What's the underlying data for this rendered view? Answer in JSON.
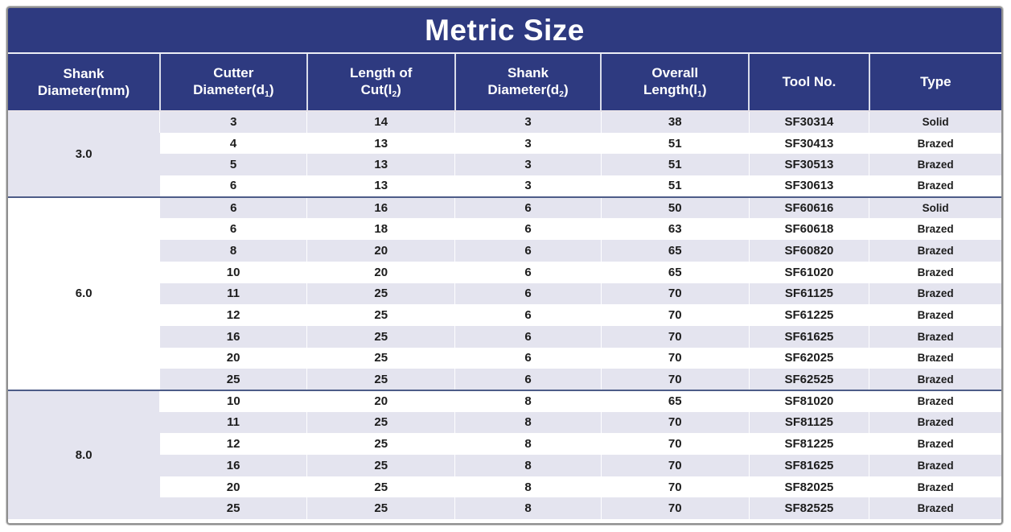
{
  "title": "Metric Size",
  "theme": {
    "header_navy": "#2e3a80",
    "row_stripe": "#e4e4ef",
    "group_separator": "#4d5c88",
    "outer_border": "#8f8f8f",
    "body_text": "#1c1c1c"
  },
  "table": {
    "columns": [
      {
        "id": "shank_mm",
        "line1": "Shank",
        "line2": "Diameter(mm)"
      },
      {
        "id": "cutter_d1",
        "line1": "Cutter",
        "line2_pre": "Diameter(d",
        "line2_sub": "1",
        "line2_post": ")"
      },
      {
        "id": "len_cut",
        "line1": "Length of",
        "line2_pre": "Cut(l",
        "line2_sub": "2",
        "line2_post": ")"
      },
      {
        "id": "shank_d2",
        "line1": "Shank",
        "line2_pre": "Diameter(d",
        "line2_sub": "2",
        "line2_post": ")"
      },
      {
        "id": "overall",
        "line1": "Overall",
        "line2_pre": "Length(l",
        "line2_sub": "1",
        "line2_post": ")"
      },
      {
        "id": "tool_no",
        "line1": "Tool No."
      },
      {
        "id": "type",
        "line1": "Type"
      }
    ],
    "groups": [
      {
        "shank_mm": "3.0",
        "rows": [
          {
            "d1": "3",
            "l2": "14",
            "d2": "3",
            "l1": "38",
            "tool": "SF30314",
            "type": "Solid"
          },
          {
            "d1": "4",
            "l2": "13",
            "d2": "3",
            "l1": "51",
            "tool": "SF30413",
            "type": "Brazed"
          },
          {
            "d1": "5",
            "l2": "13",
            "d2": "3",
            "l1": "51",
            "tool": "SF30513",
            "type": "Brazed"
          },
          {
            "d1": "6",
            "l2": "13",
            "d2": "3",
            "l1": "51",
            "tool": "SF30613",
            "type": "Brazed"
          }
        ]
      },
      {
        "shank_mm": "6.0",
        "rows": [
          {
            "d1": "6",
            "l2": "16",
            "d2": "6",
            "l1": "50",
            "tool": "SF60616",
            "type": "Solid"
          },
          {
            "d1": "6",
            "l2": "18",
            "d2": "6",
            "l1": "63",
            "tool": "SF60618",
            "type": "Brazed"
          },
          {
            "d1": "8",
            "l2": "20",
            "d2": "6",
            "l1": "65",
            "tool": "SF60820",
            "type": "Brazed"
          },
          {
            "d1": "10",
            "l2": "20",
            "d2": "6",
            "l1": "65",
            "tool": "SF61020",
            "type": "Brazed"
          },
          {
            "d1": "11",
            "l2": "25",
            "d2": "6",
            "l1": "70",
            "tool": "SF61125",
            "type": "Brazed"
          },
          {
            "d1": "12",
            "l2": "25",
            "d2": "6",
            "l1": "70",
            "tool": "SF61225",
            "type": "Brazed"
          },
          {
            "d1": "16",
            "l2": "25",
            "d2": "6",
            "l1": "70",
            "tool": "SF61625",
            "type": "Brazed"
          },
          {
            "d1": "20",
            "l2": "25",
            "d2": "6",
            "l1": "70",
            "tool": "SF62025",
            "type": "Brazed"
          },
          {
            "d1": "25",
            "l2": "25",
            "d2": "6",
            "l1": "70",
            "tool": "SF62525",
            "type": "Brazed"
          }
        ]
      },
      {
        "shank_mm": "8.0",
        "rows": [
          {
            "d1": "10",
            "l2": "20",
            "d2": "8",
            "l1": "65",
            "tool": "SF81020",
            "type": "Brazed"
          },
          {
            "d1": "11",
            "l2": "25",
            "d2": "8",
            "l1": "70",
            "tool": "SF81125",
            "type": "Brazed"
          },
          {
            "d1": "12",
            "l2": "25",
            "d2": "8",
            "l1": "70",
            "tool": "SF81225",
            "type": "Brazed"
          },
          {
            "d1": "16",
            "l2": "25",
            "d2": "8",
            "l1": "70",
            "tool": "SF81625",
            "type": "Brazed"
          },
          {
            "d1": "20",
            "l2": "25",
            "d2": "8",
            "l1": "70",
            "tool": "SF82025",
            "type": "Brazed"
          },
          {
            "d1": "25",
            "l2": "25",
            "d2": "8",
            "l1": "70",
            "tool": "SF82525",
            "type": "Brazed"
          }
        ]
      }
    ]
  }
}
